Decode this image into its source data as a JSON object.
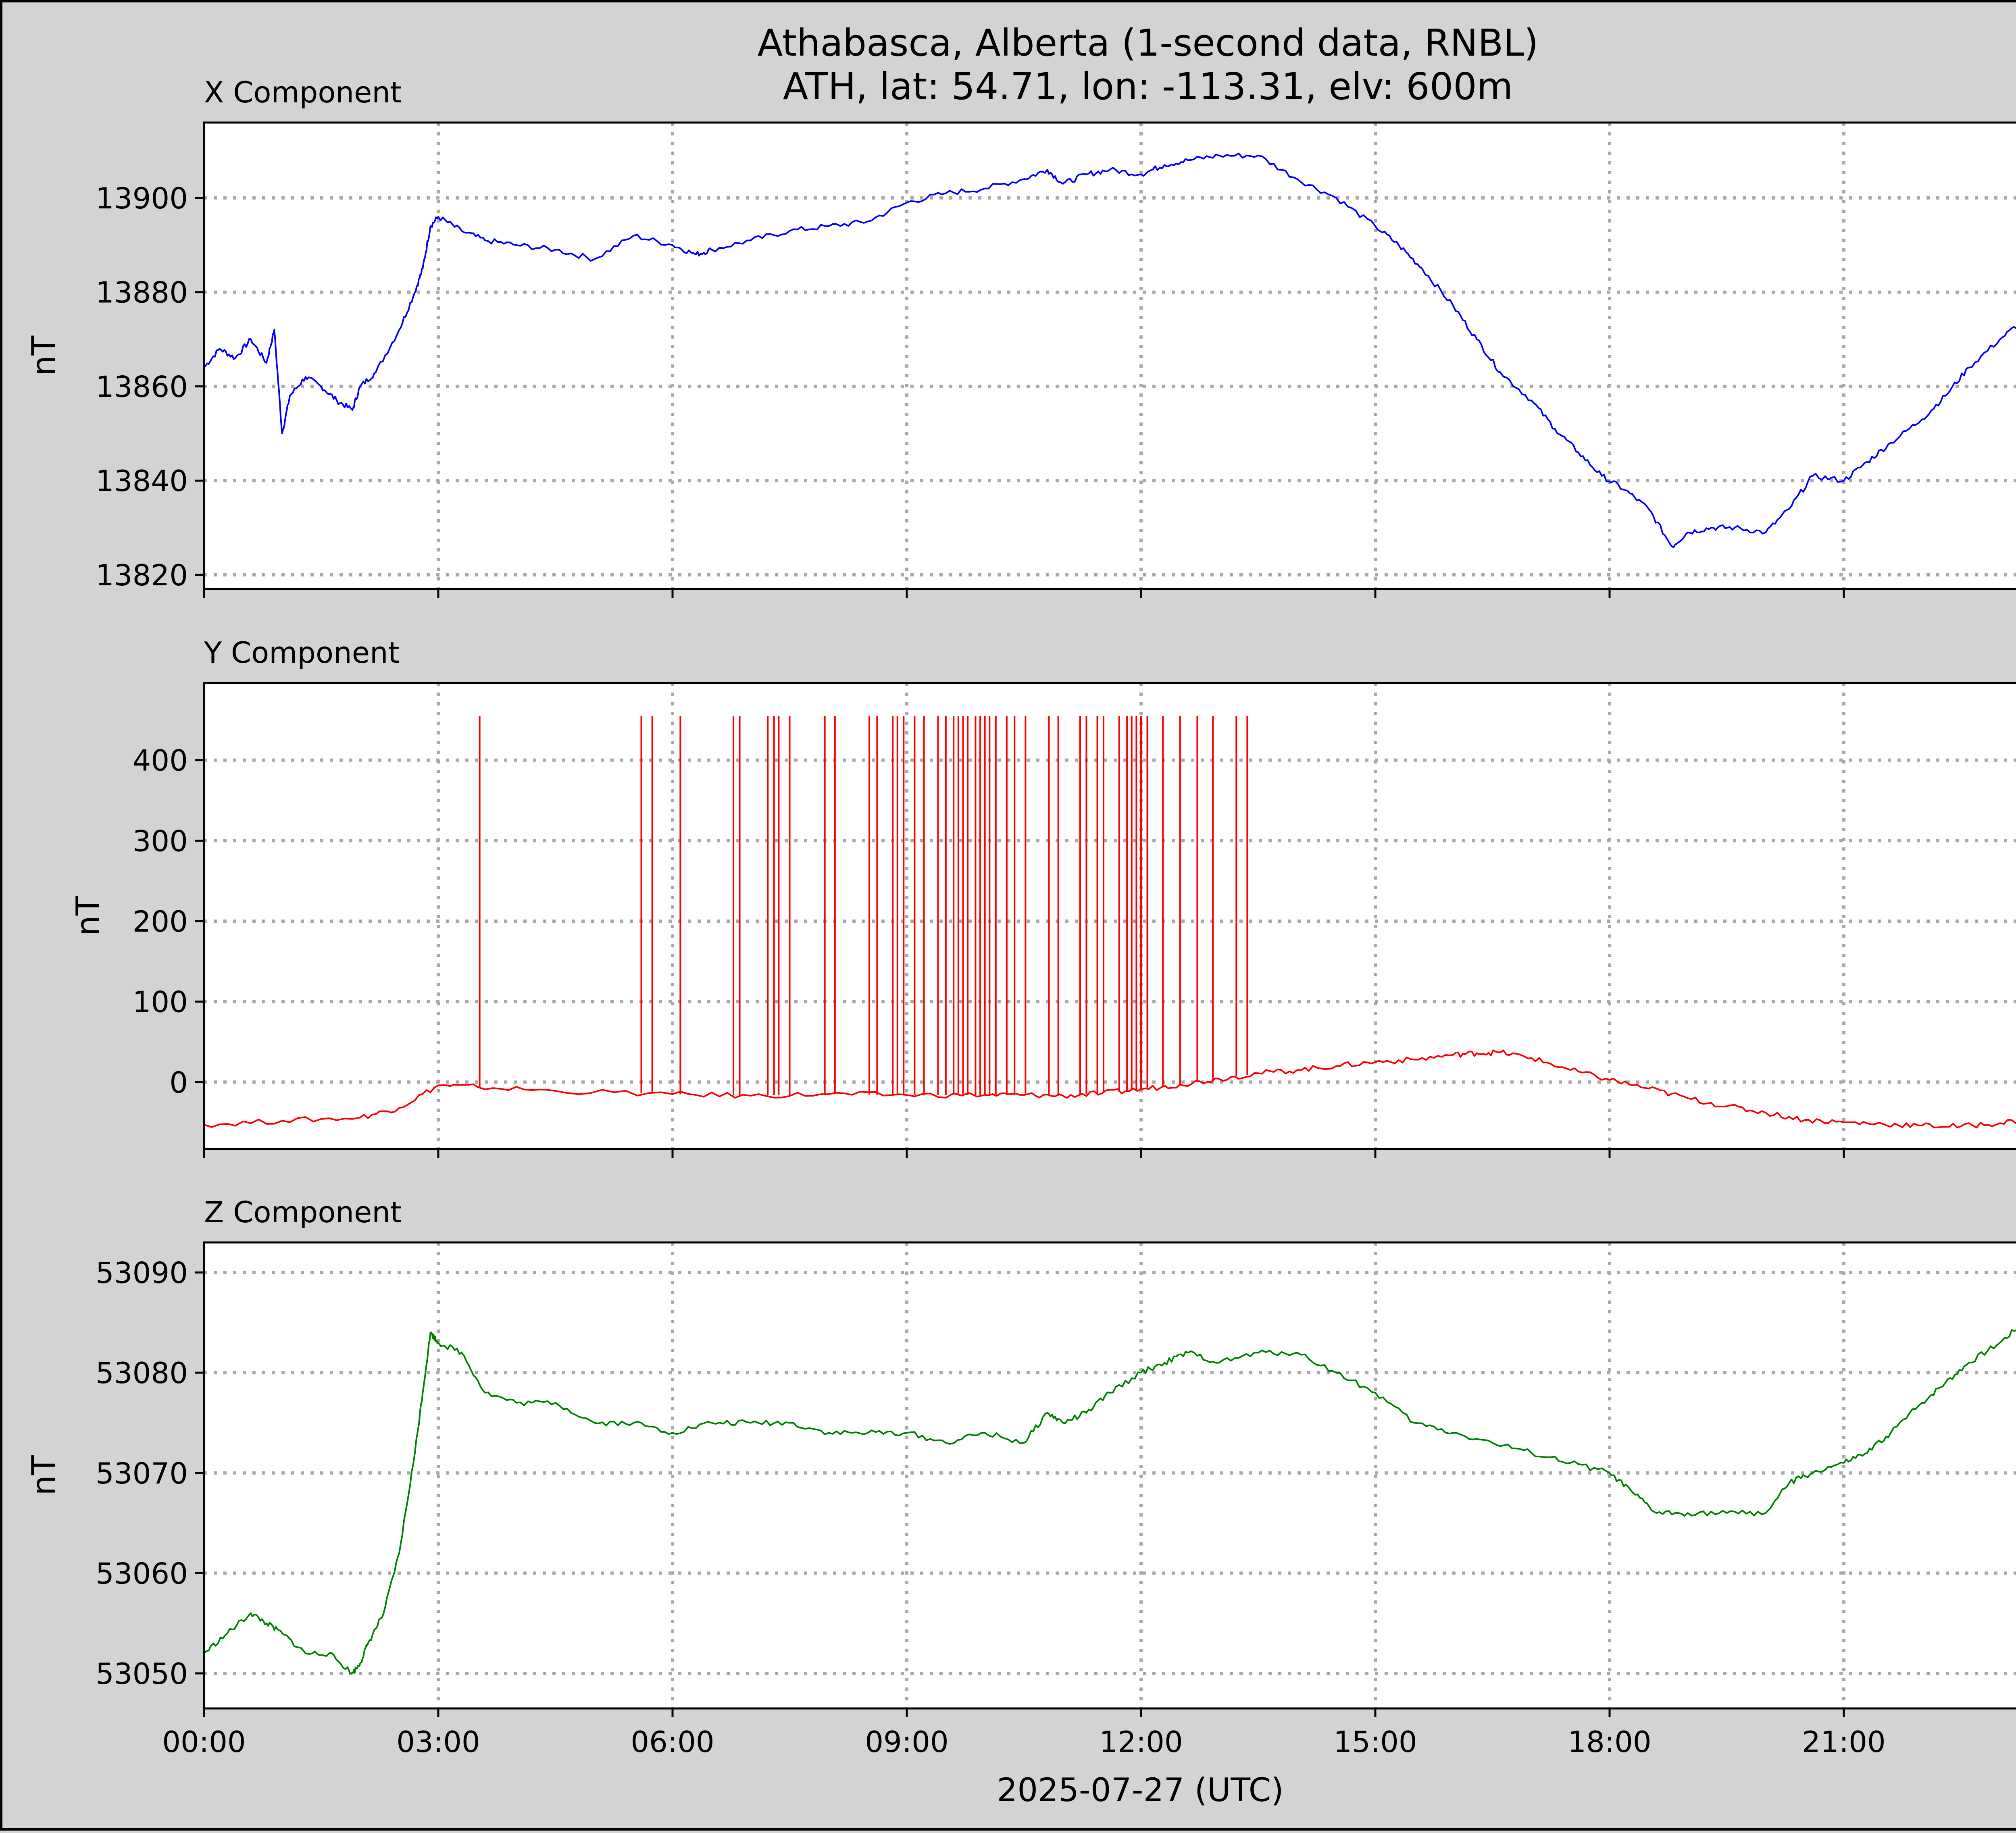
{
  "title": "Athabasca, Alberta (1-second data, RNBL)",
  "subtitle": "ATH, lat: 54.71, lon: -113.31, elv: 600m",
  "xlabel": "2025-07-27 (UTC)",
  "x_ticks": [
    "00:00",
    "03:00",
    "06:00",
    "09:00",
    "12:00",
    "15:00",
    "18:00",
    "21:00"
  ],
  "colors": {
    "background": "#d3d3d3",
    "x": "#0000ff",
    "y": "#ff0000",
    "z": "#008000",
    "grid": "#a9a9a9"
  },
  "chart_data": [
    {
      "type": "line",
      "title": "X Component",
      "ylabel": "nT",
      "color": "#0000ff",
      "xlim": [
        0,
        24
      ],
      "ylim": [
        13817,
        13916
      ],
      "yticks": [
        13820,
        13840,
        13860,
        13880,
        13900
      ],
      "grid": true,
      "x": [
        0,
        0.2,
        0.4,
        0.6,
        0.8,
        0.9,
        1.0,
        1.1,
        1.3,
        1.5,
        1.7,
        1.9,
        2.0,
        2.2,
        2.5,
        2.7,
        2.8,
        2.9,
        3.0,
        3.3,
        3.6,
        4.0,
        4.5,
        5.0,
        5.5,
        6.0,
        6.3,
        6.5,
        7.0,
        7.5,
        8.0,
        8.5,
        9.0,
        9.5,
        10.0,
        10.5,
        10.8,
        11.0,
        11.3,
        11.6,
        12.0,
        12.3,
        12.6,
        13.0,
        13.5,
        14.0,
        14.5,
        15.0,
        15.3,
        15.6,
        16.0,
        16.3,
        16.6,
        17.0,
        17.3,
        17.6,
        17.9,
        18.2,
        18.5,
        18.8,
        19.0,
        19.3,
        19.6,
        20.0,
        20.3,
        20.6,
        21.0,
        21.3,
        21.6,
        22.0,
        22.3,
        22.6,
        23.0,
        23.3,
        23.6,
        24.0
      ],
      "values": [
        13864,
        13868,
        13866,
        13870,
        13865,
        13872,
        13850,
        13858,
        13862,
        13860,
        13857,
        13855,
        13860,
        13863,
        13872,
        13880,
        13885,
        13894,
        13896,
        13893,
        13891,
        13890,
        13889,
        13887,
        13892,
        13890,
        13888,
        13889,
        13891,
        13893,
        13894,
        13895,
        13899,
        13901,
        13902,
        13904,
        13906,
        13903,
        13905,
        13906,
        13905,
        13907,
        13908,
        13909,
        13909,
        13904,
        13900,
        13894,
        13890,
        13885,
        13877,
        13870,
        13863,
        13857,
        13851,
        13846,
        13841,
        13838,
        13834,
        13826,
        13829,
        13830,
        13830,
        13829,
        13834,
        13841,
        13840,
        13844,
        13848,
        13853,
        13858,
        13864,
        13870,
        13874,
        13877,
        13873
      ]
    },
    {
      "type": "line",
      "title": "Y Component",
      "ylabel": "nT",
      "color": "#ff0000",
      "xlim": [
        0,
        24
      ],
      "ylim": [
        -83,
        496
      ],
      "yticks": [
        0,
        100,
        200,
        300,
        400
      ],
      "grid": true,
      "x": [
        0,
        1,
        2,
        2.5,
        3.0,
        3.5,
        4.5,
        6,
        7,
        8,
        9,
        10,
        10.5,
        11,
        11.5,
        12,
        12.5,
        13,
        13.5,
        14,
        14.5,
        15,
        15.5,
        16,
        16.3,
        16.6,
        17,
        17.5,
        18,
        18.5,
        19,
        19.5,
        20,
        20.5,
        21,
        21.5,
        22,
        22.5,
        23,
        23.5,
        24
      ],
      "values": [
        -53,
        -48,
        -44,
        -32,
        -4,
        -6,
        -11,
        -15,
        -17,
        -15,
        -16,
        -16,
        -16,
        -17,
        -14,
        -9,
        -3,
        4,
        11,
        15,
        20,
        25,
        28,
        34,
        36,
        37,
        30,
        15,
        3,
        -8,
        -20,
        -30,
        -38,
        -47,
        -50,
        -52,
        -54,
        -55,
        -51,
        -44,
        -35
      ],
      "spike_times": [
        3.53,
        5.6,
        5.74,
        6.1,
        6.78,
        6.86,
        7.22,
        7.3,
        7.36,
        7.5,
        7.95,
        8.08,
        8.52,
        8.62,
        8.82,
        8.88,
        8.96,
        9.1,
        9.22,
        9.4,
        9.5,
        9.6,
        9.66,
        9.72,
        9.78,
        9.88,
        9.94,
        10.0,
        10.06,
        10.14,
        10.28,
        10.38,
        10.52,
        10.82,
        10.94,
        11.22,
        11.3,
        11.44,
        11.52,
        11.72,
        11.82,
        11.88,
        11.94,
        12.0,
        12.08,
        12.28,
        12.5,
        12.72,
        12.92,
        13.22,
        13.36
      ],
      "spike_peak": 455
    },
    {
      "type": "line",
      "title": "Z Component",
      "ylabel": "nT",
      "color": "#008000",
      "xlim": [
        0,
        24
      ],
      "ylim": [
        53046.5,
        53093
      ],
      "yticks": [
        53050,
        53060,
        53070,
        53080,
        53090
      ],
      "grid": true,
      "x": [
        0,
        0.3,
        0.6,
        0.8,
        1.0,
        1.3,
        1.6,
        1.9,
        2.0,
        2.1,
        2.3,
        2.5,
        2.7,
        2.8,
        2.9,
        3.0,
        3.3,
        3.6,
        4.0,
        4.5,
        5.0,
        5.5,
        6.0,
        6.5,
        7.0,
        7.5,
        8.0,
        8.5,
        9.0,
        9.5,
        10.0,
        10.5,
        10.8,
        11.0,
        11.3,
        11.6,
        12.0,
        12.3,
        12.6,
        13.0,
        13.5,
        14.0,
        14.5,
        15.0,
        15.5,
        16.0,
        16.5,
        17.0,
        17.5,
        18.0,
        18.3,
        18.6,
        19.0,
        19.5,
        20.0,
        20.3,
        20.6,
        21.0,
        21.3,
        21.6,
        22.0,
        22.3,
        22.6,
        23.0,
        23.3,
        23.6,
        24.0
      ],
      "values": [
        53052,
        53054,
        53056,
        53055,
        53054,
        53052,
        53052,
        53050,
        53051,
        53053,
        53056,
        53062,
        53072,
        53078,
        53084,
        53083,
        53082,
        53078,
        53077,
        53077,
        53075,
        53075,
        53074,
        53075,
        53075,
        53075,
        53074,
        53074,
        53074,
        53073,
        53074,
        53073,
        53076,
        53075,
        53076,
        53078,
        53080,
        53081,
        53082,
        53081,
        53082,
        53082,
        53080,
        53078,
        53075,
        53074,
        53073,
        53072,
        53071,
        53070,
        53068,
        53066,
        53066,
        53066,
        53066,
        53069,
        53070,
        53071,
        53072,
        53074,
        53077,
        53079,
        53081,
        53083,
        53085,
        53087,
        53087
      ]
    }
  ]
}
